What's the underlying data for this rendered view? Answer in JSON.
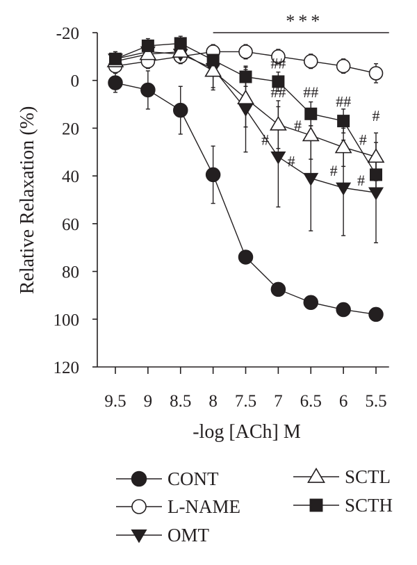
{
  "chart_data": {
    "type": "line",
    "xlabel": "-log [ACh] M",
    "ylabel": "Relative Relaxation (%)",
    "x_ticks": [
      "9.5",
      "9",
      "8.5",
      "8",
      "7.5",
      "7",
      "6.5",
      "6",
      "5.5"
    ],
    "x": [
      9.5,
      9,
      8.5,
      8,
      7.5,
      7,
      6.5,
      6,
      5.5
    ],
    "xlim": [
      9.5,
      5.3
    ],
    "ylim": [
      -20,
      120
    ],
    "y_inverted": true,
    "y_ticks": [
      "-20",
      "0",
      "20",
      "40",
      "60",
      "80",
      "100",
      "120"
    ],
    "y_tick_values": [
      -20,
      0,
      20,
      40,
      60,
      80,
      100,
      120
    ],
    "grid": false,
    "legend_position": "bottom",
    "series": [
      {
        "name": "CONT",
        "marker": "filled-circle",
        "values": [
          1,
          4,
          12.5,
          39.5,
          74,
          87.5,
          93,
          96,
          98
        ],
        "err": [
          4,
          8,
          10,
          12,
          0,
          0,
          0,
          0,
          0
        ]
      },
      {
        "name": "L-NAME",
        "marker": "open-circle",
        "values": [
          -6,
          -8,
          -10,
          -12,
          -12,
          -10,
          -8,
          -6,
          -3
        ],
        "err": [
          3,
          3,
          3,
          3,
          3,
          3,
          3,
          3,
          4
        ]
      },
      {
        "name": "OMT",
        "marker": "filled-triangle-down",
        "values": [
          -9,
          -12,
          -11,
          -5,
          12,
          32,
          41,
          45,
          47
        ],
        "err": [
          3,
          3,
          3,
          8,
          18,
          21,
          22,
          20,
          21
        ]
      },
      {
        "name": "SCTL",
        "marker": "open-triangle-up",
        "values": [
          -8,
          -11,
          -12,
          -4,
          7.5,
          18.5,
          23,
          28,
          32
        ],
        "err": [
          3,
          3,
          3,
          8,
          12,
          10,
          10,
          8,
          10
        ]
      },
      {
        "name": "SCTH",
        "marker": "filled-square",
        "values": [
          -9,
          -14.5,
          -15.5,
          -8.5,
          -1.5,
          0.5,
          14,
          17,
          39.5
        ],
        "err": [
          3,
          3,
          3,
          4,
          4,
          4,
          5,
          5,
          6
        ]
      }
    ],
    "significance_bar": {
      "label": "***",
      "x_from": 8,
      "x_to": 5.3,
      "y": -20
    },
    "annotations": [
      {
        "text": "##",
        "x": 7,
        "y": -5
      },
      {
        "text": "##",
        "x": 7,
        "y": 7
      },
      {
        "text": "##",
        "x": 6.5,
        "y": 7
      },
      {
        "text": "##",
        "x": 6,
        "y": 11
      },
      {
        "text": "#",
        "x": 5.5,
        "y": 17
      },
      {
        "text": "#",
        "x": 6.7,
        "y": 21
      },
      {
        "text": "#",
        "x": 5.7,
        "y": 27
      },
      {
        "text": "#",
        "x": 7.2,
        "y": 27
      },
      {
        "text": "#",
        "x": 6.8,
        "y": 36
      },
      {
        "text": "#",
        "x": 6.15,
        "y": 40
      },
      {
        "text": "#",
        "x": 5.73,
        "y": 44
      }
    ]
  }
}
